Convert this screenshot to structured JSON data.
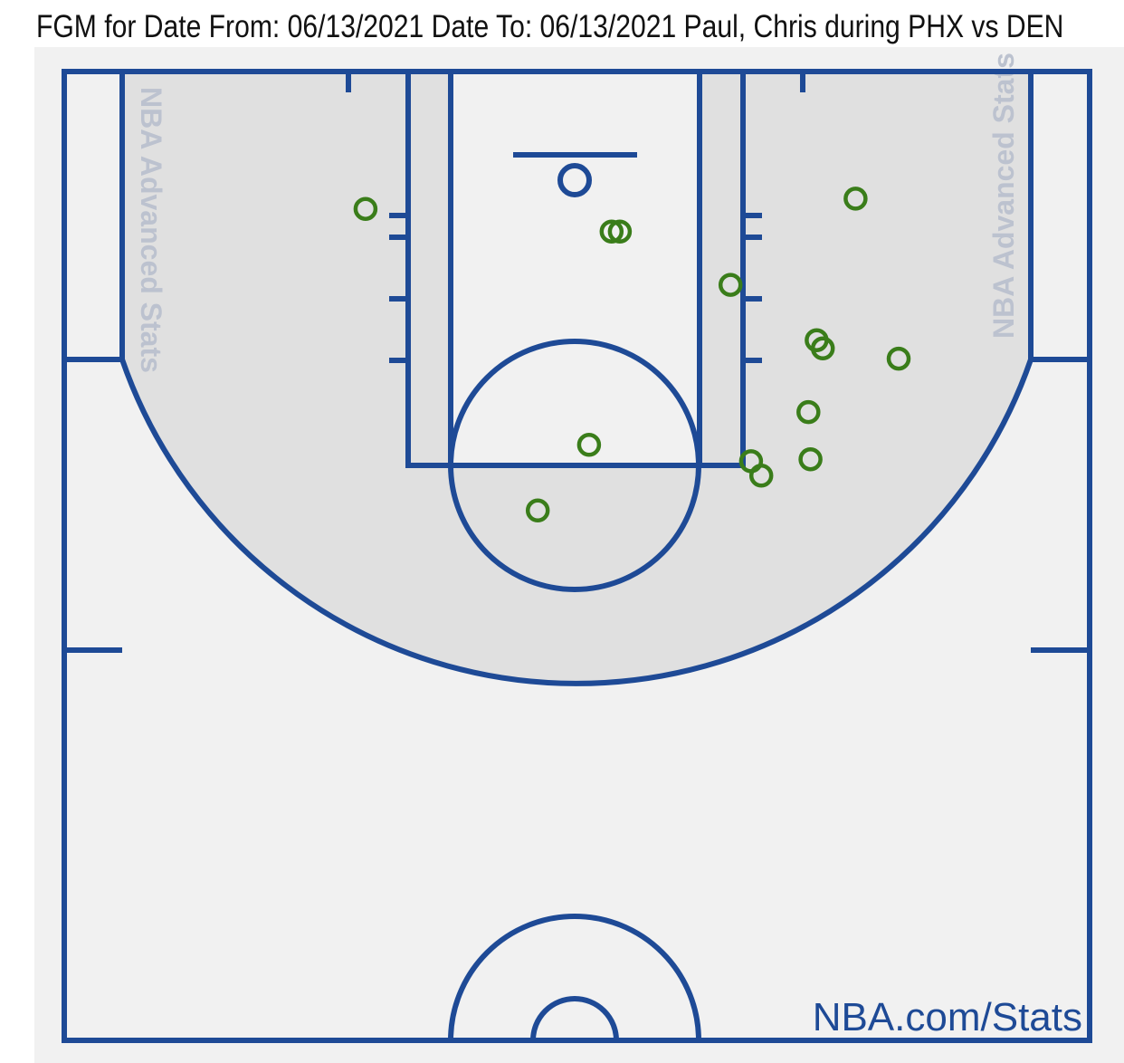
{
  "header": {
    "title": "FGM for Date From: 06/13/2021 Date To: 06/13/2021 Paul, Chris during PHX vs DEN"
  },
  "court": {
    "watermark_left": "NBA Advanced Stats",
    "watermark_right": "NBA Advanced Stats",
    "brand": "NBA.com/Stats",
    "line_color": "#1e4a96",
    "paint_zone_color": "#e0e0e0",
    "court_color": "#f1f1f1"
  },
  "chart_data": {
    "type": "scatter",
    "title": "FGM for Date From: 06/13/2021 Date To: 06/13/2021 Paul, Chris during PHX vs DEN",
    "units": "feet from basket (x: baseline direction left/right, y: distance toward half court)",
    "xlim": [
      -25,
      25
    ],
    "ylim": [
      -5,
      42
    ],
    "marker": "hollow-circle",
    "marker_color": "#3a7d1a",
    "series": [
      {
        "values": [
          {
            "x": -10.2,
            "y": 1.4
          },
          {
            "x": 1.8,
            "y": 2.5
          },
          {
            "x": 2.2,
            "y": 2.5
          },
          {
            "x": 13.7,
            "y": 0.9
          },
          {
            "x": 7.6,
            "y": 5.1
          },
          {
            "x": 11.8,
            "y": 7.8
          },
          {
            "x": 12.1,
            "y": 8.2
          },
          {
            "x": 15.8,
            "y": 8.7
          },
          {
            "x": 11.4,
            "y": 11.3
          },
          {
            "x": 0.7,
            "y": 12.9
          },
          {
            "x": 8.6,
            "y": 13.7
          },
          {
            "x": 9.1,
            "y": 14.4
          },
          {
            "x": 11.5,
            "y": 13.6
          },
          {
            "x": -1.8,
            "y": 16.1
          }
        ]
      }
    ]
  }
}
